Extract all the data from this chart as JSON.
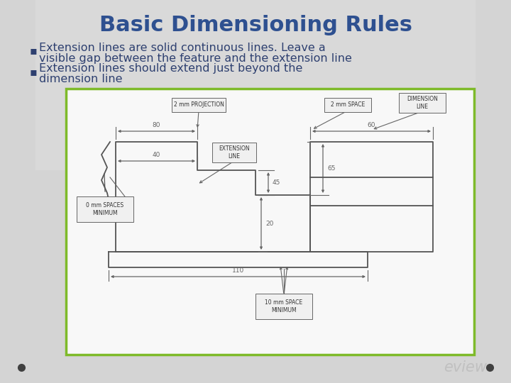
{
  "title": "Basic Dimensioning Rules",
  "title_color": "#2E5090",
  "title_fontsize": 22,
  "bullet1_line1": "Extension lines are solid continuous lines. Leave a",
  "bullet1_line2": "visible gap between the feature and the extension line",
  "bullet2_line1": "Extension lines should extend just beyond the",
  "bullet2_line2": "dimension line",
  "bullet_color": "#2E4070",
  "bullet_fontsize": 11.5,
  "bg_gradient_top": "#d8d8d8",
  "bg_gradient_bot": "#c8c8c8",
  "diagram_bg": "#f5f5f5",
  "diagram_border": "#7eba2a",
  "shape_color": "#555555",
  "dim_color": "#666666",
  "label_border": "#666666",
  "label_bg": "#f0f0f0",
  "review_text": "eview",
  "review_color": "#c0c0c0",
  "dot_color": "#404040",
  "label_fontsize": 5.5,
  "dim_fontsize": 6.5
}
